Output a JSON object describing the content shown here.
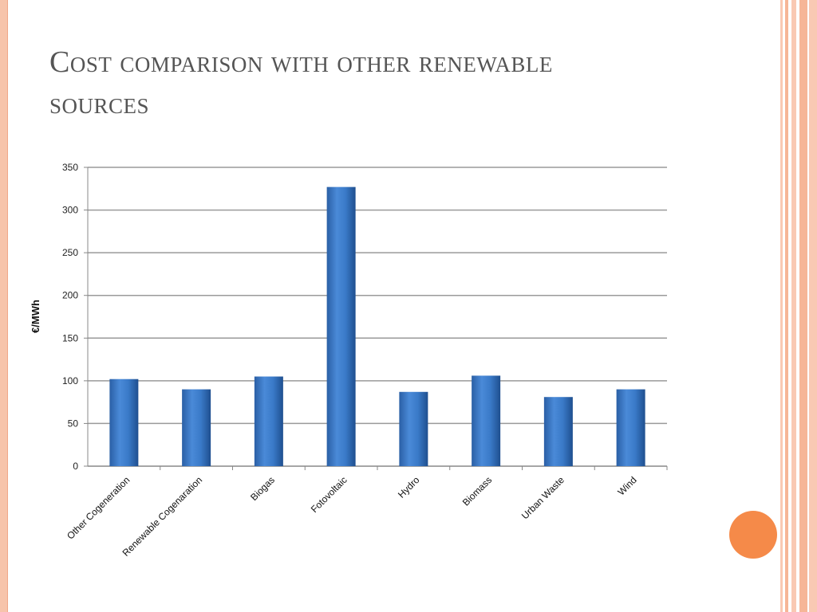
{
  "slide": {
    "title": "Cost comparison with other renewable sources"
  },
  "theme": {
    "accent": "#f58a49",
    "border": "#f7c4ab",
    "bar_color": "#3a78c4"
  },
  "chart_data": {
    "type": "bar",
    "categories": [
      "Other Cogeneration",
      "Renewable Cogenaration",
      "Biogas",
      "Fotovoltaic",
      "Hydro",
      "Biomass",
      "Urban Waste",
      "Wind"
    ],
    "values": [
      102,
      90,
      105,
      327,
      87,
      106,
      81,
      90
    ],
    "ylabel": "€/MWh",
    "ylim": [
      0,
      350
    ],
    "yticks": [
      "0",
      "50",
      "100",
      "150",
      "200",
      "250",
      "300",
      "350"
    ],
    "grid": true,
    "legend": "none"
  }
}
